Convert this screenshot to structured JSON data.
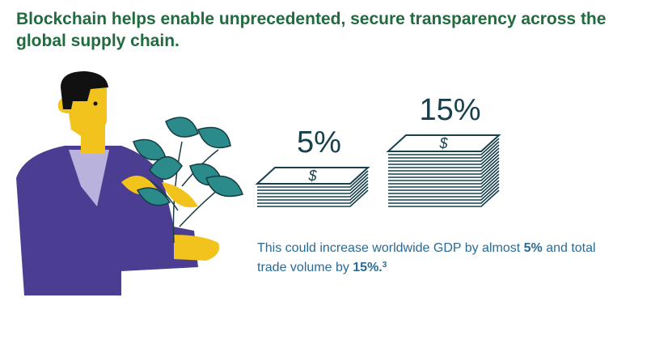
{
  "header": {
    "title_lines": [
      "Blockchain helps enable unprecedented, secure transparency across the",
      "global supply chain."
    ]
  },
  "stacks": [
    {
      "label": "5%"
    },
    {
      "label": "15%"
    }
  ],
  "bill_symbol": "$",
  "caption": {
    "lines": [
      [
        {
          "text": "This could increase worldwide GDP by almost "
        },
        {
          "text": "5%",
          "bold": true
        },
        {
          "text": " and total"
        }
      ],
      [
        {
          "text": "trade volume by "
        },
        {
          "text": "15%.",
          "bold": true
        },
        {
          "text": "3",
          "sup": true
        }
      ]
    ]
  }
}
